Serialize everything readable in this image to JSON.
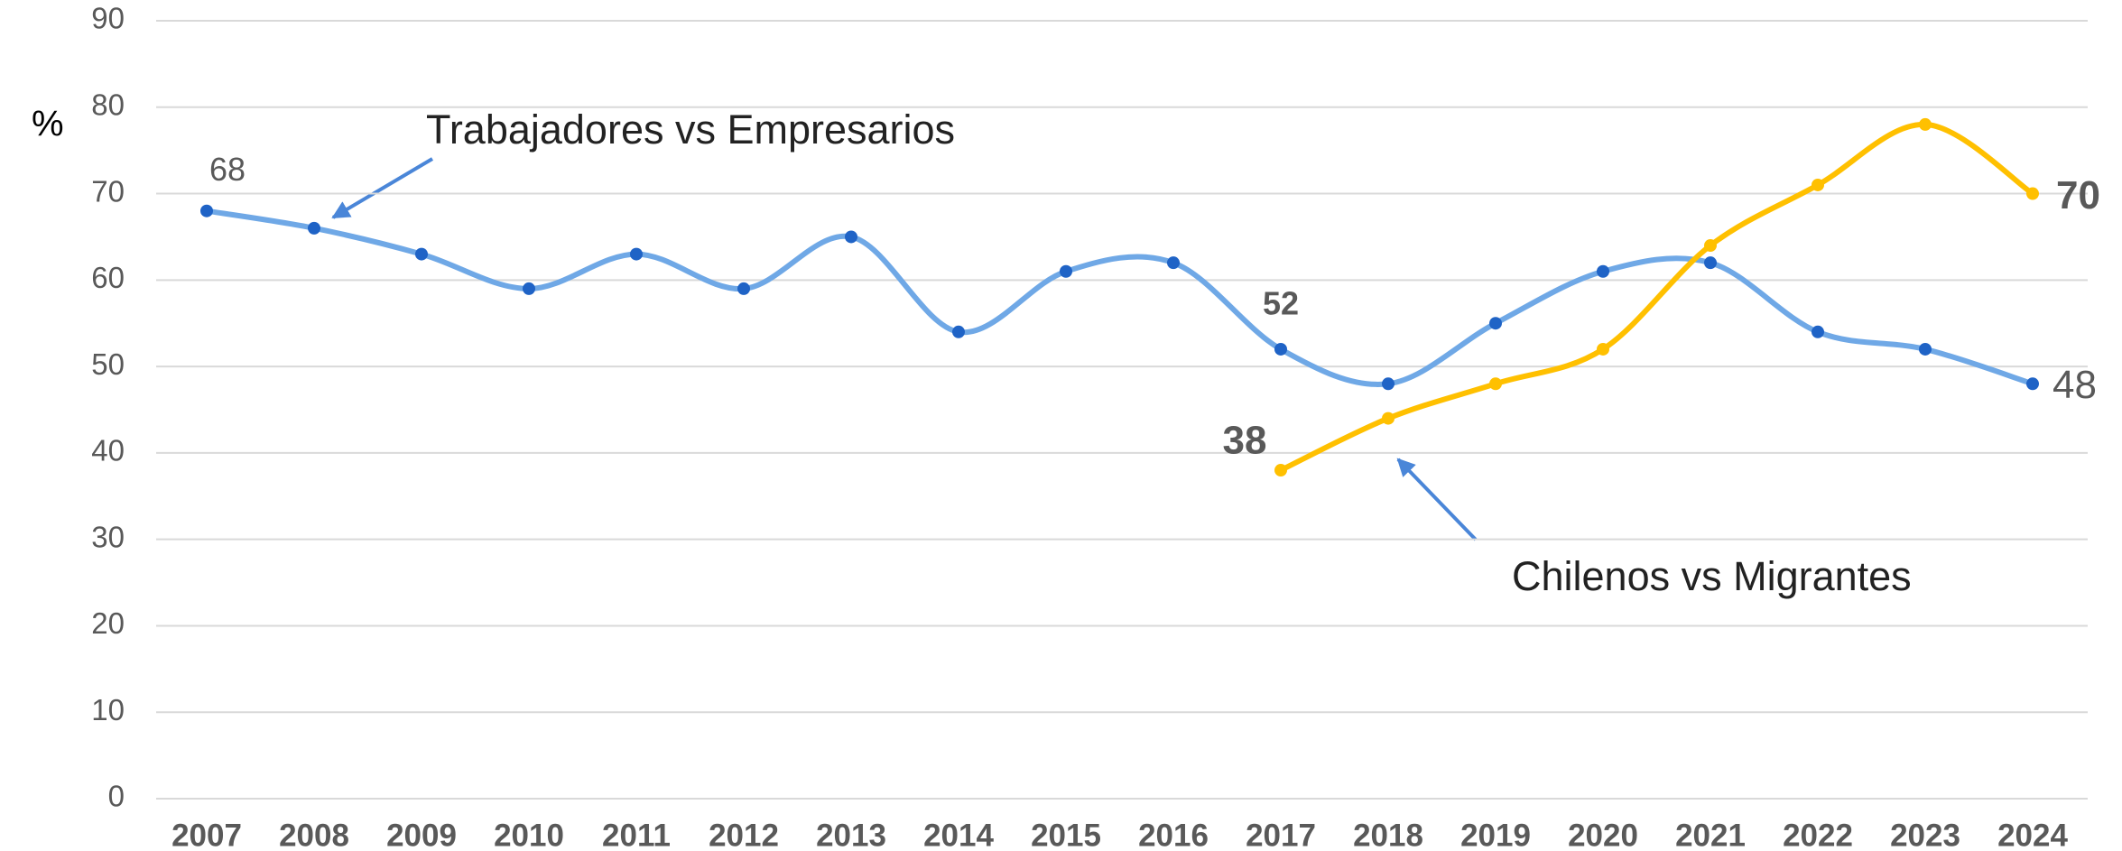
{
  "chart_data": {
    "type": "line",
    "y_label": "%",
    "annotations": [
      "Trabajadores vs Empresarios",
      "Chilenos vs Migrantes"
    ],
    "categories": [
      "2007",
      "2008",
      "2009",
      "2010",
      "2011",
      "2012",
      "2013",
      "2014",
      "2015",
      "2016",
      "2017",
      "2018",
      "2019",
      "2020",
      "2021",
      "2022",
      "2023",
      "2024"
    ],
    "series": [
      {
        "name": "Trabajadores vs Empresarios",
        "color": "#6fa8e6",
        "marker_color": "#1f63c6",
        "values": [
          68,
          66,
          63,
          59,
          63,
          59,
          65,
          54,
          61,
          62,
          52,
          48,
          55,
          61,
          62,
          54,
          52,
          48
        ]
      },
      {
        "name": "Chilenos vs Migrantes",
        "color": "#ffc000",
        "marker_color": "#ffc000",
        "values": [
          null,
          null,
          null,
          null,
          null,
          null,
          null,
          null,
          null,
          null,
          38,
          44,
          48,
          52,
          64,
          71,
          78,
          70
        ]
      }
    ],
    "ylim": [
      0,
      90
    ],
    "yticks": [
      0,
      10,
      20,
      30,
      40,
      50,
      60,
      70,
      80,
      90
    ],
    "grid": true
  }
}
